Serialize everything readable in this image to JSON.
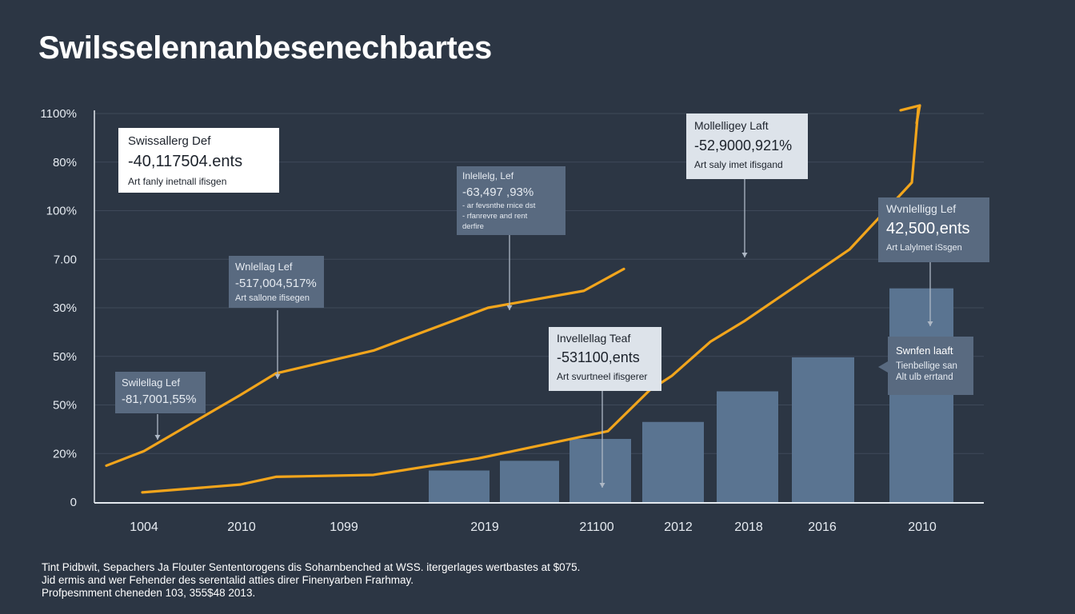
{
  "title": "Swilsselennanbesenechbartes",
  "chart_data": {
    "type": "bar",
    "title": "Swilsselennanbesenechbartes",
    "y_tick_labels": [
      "0",
      "20%",
      "50%",
      "50%",
      "30%",
      "7.00",
      "100%",
      "80%",
      "1100%"
    ],
    "x_tick_labels": [
      "1004",
      "2010",
      "1099",
      "2019",
      "21100",
      "2012",
      "2018",
      "2016",
      "2010"
    ],
    "bars": [
      {
        "category": "2019",
        "value": 0.65
      },
      {
        "category": "21100",
        "value": 0.85
      },
      {
        "category": "2012",
        "value": 1.3
      },
      {
        "category": "2018",
        "value": 1.65
      },
      {
        "category": "2016",
        "value": 2.28
      },
      {
        "category": "",
        "value": 2.98
      },
      {
        "category": "2010",
        "value": 4.4
      }
    ],
    "series": [
      {
        "type": "line",
        "color": "#f2a51c",
        "points": [
          [
            0.35,
            0.75
          ],
          [
            1,
            1.05
          ],
          [
            2,
            2.2
          ],
          [
            3,
            2.65
          ],
          [
            4,
            3.12
          ],
          [
            5,
            4.0
          ],
          [
            6,
            4.35
          ],
          [
            7,
            4.8
          ]
        ]
      },
      {
        "type": "line",
        "color": "#f2a51c",
        "points": [
          [
            0.3,
            0.2
          ],
          [
            1,
            0.36
          ],
          [
            2,
            0.52
          ],
          [
            3,
            0.56
          ],
          [
            4,
            0.9
          ],
          [
            5,
            1.12
          ],
          [
            6,
            1.46
          ],
          [
            7,
            2.3
          ],
          [
            8,
            2.6
          ],
          [
            8.5,
            3.3
          ],
          [
            9,
            3.72
          ],
          [
            10,
            5.2
          ],
          [
            11,
            6.58
          ],
          [
            12,
            8.1
          ]
        ]
      }
    ],
    "line_color": "#f2a51c",
    "bar_color": "#5a7491",
    "grid": true,
    "callouts": [
      {
        "header": "Swissallerg Def",
        "value": "-40,117504.ents",
        "sub": "Art fanly inetnall ifisgen"
      },
      {
        "header": "Wnlellag Lef",
        "value": "-517,004,517%",
        "sub": "Art sallone ifisegen"
      },
      {
        "header": "Swilellag Lef",
        "value": "-81,7001,55%",
        "sub": ""
      },
      {
        "header": "Inlellelg, Lef",
        "value": "-63,497 ,93%",
        "sub": "- ar fevsnthe rnice dst",
        "sub2": "- rfanrevre and rent",
        "sub3": "derfire"
      },
      {
        "header": "Invellellag Teaf",
        "value": "-531100,ents",
        "sub": "Art svurtneel ifisgerer"
      },
      {
        "header": "Mollelligey Laft",
        "value": "-52,9000,921%",
        "sub": "Art saly imet ifisgand"
      },
      {
        "header": "Wvnlelligg Lef",
        "value": "42,500,ents",
        "sub": "Art Lalylmet iSsgen"
      },
      {
        "header": "Swnfen laaft",
        "value": "",
        "sub": "Tienbellige san",
        "sub2": "Alt ulb errtand"
      }
    ]
  },
  "footer": {
    "line1": "Tint Pidbwit, Sepachers Ja Flouter Sententorogens dis Soharnbenched at WSS. itergerlages wertbastes at $075.",
    "line2": "Jid ermis and wer Fehender des serentalid atties direr Finenyarben Frarhmay.",
    "line3": "Profpesmment cheneden 103, 355$48 2013."
  }
}
